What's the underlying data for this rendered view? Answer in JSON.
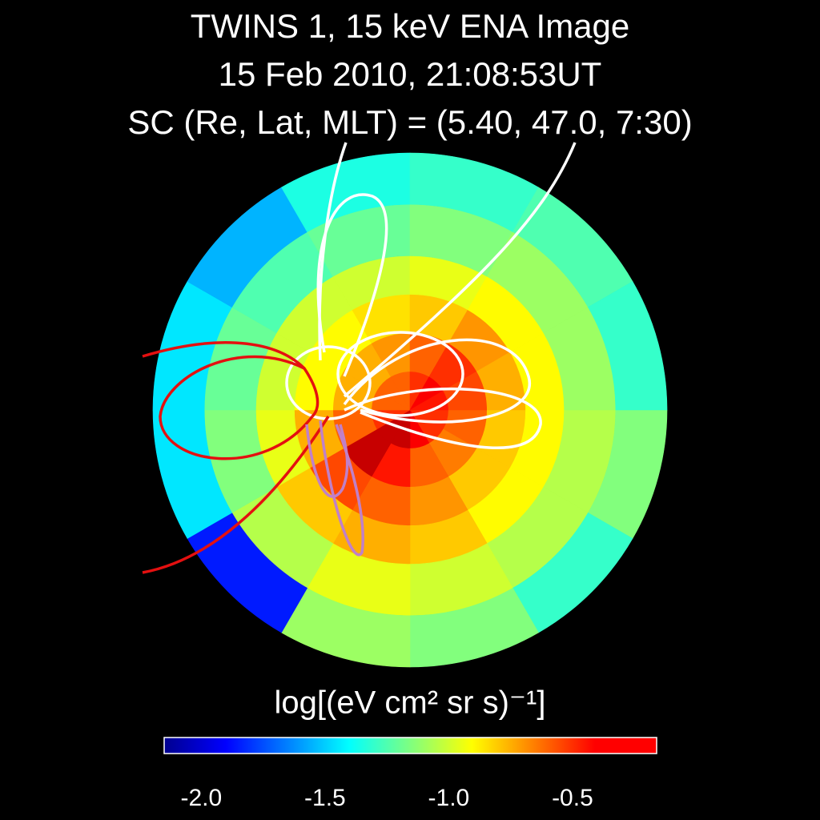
{
  "chart_data": {
    "type": "polar_heatmap",
    "title_lines": [
      "TWINS 1, 15 keV ENA Image",
      "15 Feb 2010, 21:08:53UT",
      "SC (Re, Lat, MLT) = (5.40, 47.0, 7:30)"
    ],
    "colorbar_label": "log[(eV cm² sr s)⁻¹]",
    "clim": [
      -2.15,
      -0.16
    ],
    "cticks": [
      {
        "value": -2,
        "label": "-2.0"
      },
      -1.5,
      {
        "value": -1,
        "label": "-1.0"
      },
      -0.5
    ],
    "values": [
      [
        -0.5,
        -0.5,
        -0.4,
        -0.3,
        -0.3,
        -0.5,
        -0.6,
        -0.6,
        -0.6,
        -0.5,
        -0.4,
        -0.45
      ],
      [
        -0.6,
        -0.65,
        -0.6,
        -0.45,
        -0.3,
        -0.6,
        -0.75,
        -0.75,
        -0.7,
        -0.6,
        -0.5,
        -0.55
      ],
      [
        -0.8,
        -0.8,
        -0.7,
        -0.6,
        -0.55,
        -0.75,
        -0.9,
        -0.9,
        -0.85,
        -0.8,
        -0.7,
        -0.75
      ],
      [
        -0.9,
        -0.9,
        -0.8,
        -0.75,
        -0.8,
        -0.95,
        -1.0,
        -1.0,
        -1.0,
        -0.95,
        -0.9,
        -0.9
      ],
      [
        -1.05,
        -1.05,
        -1.0,
        -0.95,
        -1.05,
        -1.15,
        -1.2,
        -1.25,
        -1.2,
        -1.15,
        -1.1,
        -1.1
      ],
      [
        -1.15,
        -1.3,
        -1.15,
        -1.1,
        -1.85,
        -1.45,
        -1.45,
        -1.55,
        -1.35,
        -1.3,
        -1.25,
        -1.3
      ]
    ]
  }
}
